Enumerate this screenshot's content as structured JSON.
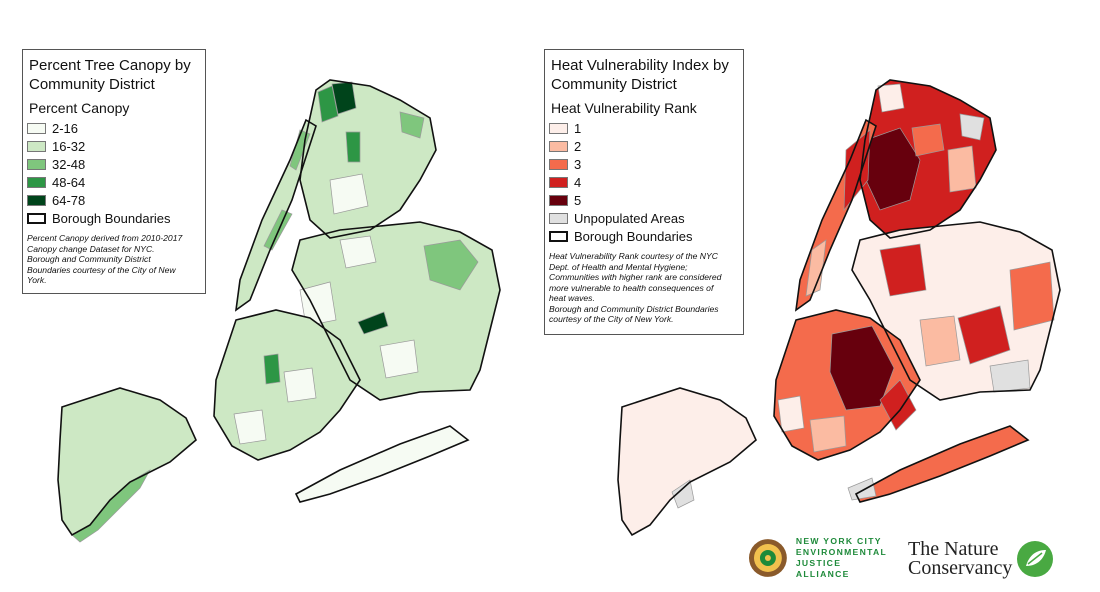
{
  "left_map": {
    "title_line1": "Percent Tree Canopy by",
    "title_line2": "Community District",
    "legend_title": "Percent Canopy",
    "classes": [
      {
        "label": "2-16",
        "color": "#f6fbf3"
      },
      {
        "label": "16-32",
        "color": "#cde8c4"
      },
      {
        "label": "32-48",
        "color": "#7fc67d"
      },
      {
        "label": "48-64",
        "color": "#2d9645"
      },
      {
        "label": "64-78",
        "color": "#00441b"
      }
    ],
    "boundary_label": "Borough Boundaries",
    "note_lines": [
      "Percent Canopy derived from 2010-2017",
      "Canopy change Dataset for NYC.",
      "Borough and Community District",
      "Boundaries courtesy of the City of New",
      "York."
    ]
  },
  "right_map": {
    "title_line1": "Heat Vulnerability Index by",
    "title_line2": "Community District",
    "legend_title": "Heat Vulnerability Rank",
    "classes": [
      {
        "label": "1",
        "color": "#fdeee9"
      },
      {
        "label": "2",
        "color": "#fbbba2"
      },
      {
        "label": "3",
        "color": "#f46b4c"
      },
      {
        "label": "4",
        "color": "#d0201f"
      },
      {
        "label": "5",
        "color": "#67000d"
      }
    ],
    "unpopulated_label": "Unpopulated Areas",
    "unpopulated_color": "#e0e0e0",
    "boundary_label": "Borough Boundaries",
    "note_lines": [
      "Heat Vulnerability Rank courtesy of the NYC",
      "Dept. of Health and Mental Hygiene;",
      "Communities with higher rank are considered",
      "more vulnerable to health consequences of",
      "heat waves.",
      "Borough and Community District Boundaries",
      "courtesy of the City of New York."
    ]
  },
  "logos": {
    "nyc_ej_lines": [
      "NEW YORK CITY",
      "ENVIRONMENTAL",
      "JUSTICE ALLIANCE"
    ],
    "tnc_line1": "The Nature",
    "tnc_line2": "Conservancy",
    "nyc_ej_color": "#1e8a3a",
    "tnc_color": "#49a942"
  }
}
